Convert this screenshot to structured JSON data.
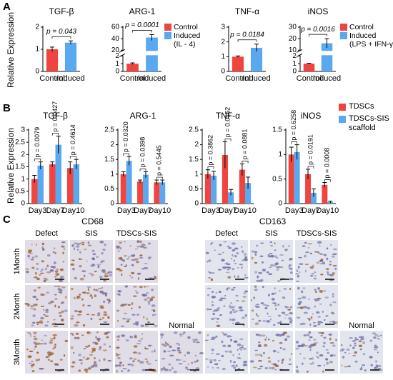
{
  "panel_a": {
    "label": "A",
    "ylabel": "Relative Expression"
  },
  "panel_b": {
    "label": "B",
    "ylabel": "Relative Expression"
  },
  "chart_data": [
    {
      "type": "bar",
      "title": "TGF-β",
      "categories": [
        "Control",
        "Induced"
      ],
      "values": [
        1.0,
        1.3
      ],
      "errors": [
        0.1,
        0.08
      ],
      "colors": [
        "#f0443f",
        "#5aa9f0"
      ],
      "ylim": [
        0,
        2
      ],
      "yticks": [
        0,
        1,
        2
      ],
      "pvalue": "p = 0.043"
    },
    {
      "type": "bar",
      "title": "ARG-1",
      "categories": [
        "Control",
        "Induced"
      ],
      "values": [
        1.0,
        42
      ],
      "errors": [
        0.1,
        5
      ],
      "colors": [
        "#f0443f",
        "#5aa9f0"
      ],
      "ylim": [
        0,
        60
      ],
      "yticks": [
        0,
        1,
        2,
        20,
        40,
        60
      ],
      "ybreak": [
        2,
        20
      ],
      "pvalue": "p = 0.0001",
      "legend": [
        "Control",
        "Induced",
        "(IL - 4)"
      ]
    },
    {
      "type": "bar",
      "title": "TNF-α",
      "categories": [
        "Control",
        "Induced"
      ],
      "values": [
        1.0,
        1.6
      ],
      "errors": [
        0.05,
        0.25
      ],
      "colors": [
        "#f0443f",
        "#5aa9f0"
      ],
      "ylim": [
        0,
        3
      ],
      "yticks": [
        0,
        1,
        2,
        3
      ],
      "pvalue": "p = 0.0184"
    },
    {
      "type": "bar",
      "title": "iNOS",
      "categories": [
        "Control",
        "Induced"
      ],
      "values": [
        1.0,
        16
      ],
      "errors": [
        0.05,
        4
      ],
      "colors": [
        "#f0443f",
        "#5aa9f0"
      ],
      "ylim": [
        0,
        30
      ],
      "yticks": [
        0,
        1,
        2,
        10,
        20,
        30
      ],
      "ybreak": [
        2,
        10
      ],
      "pvalue": "p = 0.0016",
      "legend": [
        "Control",
        "Induced",
        "(LPS + IFN-γ)"
      ]
    },
    {
      "type": "bar",
      "title": "TGF-β",
      "categories": [
        "Day3",
        "Day7",
        "Day10"
      ],
      "ylim": [
        0,
        3
      ],
      "yticks": [
        0,
        0.5,
        1,
        1.5,
        2,
        2.5,
        3
      ],
      "series": [
        {
          "color": "#f0443f",
          "values": [
            1.0,
            1.6,
            1.45
          ],
          "errors": [
            0.15,
            0.1,
            0.25
          ]
        },
        {
          "color": "#5aa9f0",
          "values": [
            1.55,
            2.4,
            1.6
          ],
          "errors": [
            0.15,
            0.35,
            0.2
          ]
        }
      ],
      "pvalues": [
        "p = 0.0079",
        "p = 0.0427",
        "p = 0.4614"
      ]
    },
    {
      "type": "bar",
      "title": "ARG-1",
      "categories": [
        "Day3",
        "Day7",
        "Day10"
      ],
      "ylim": [
        0,
        2.5
      ],
      "yticks": [
        0,
        0.5,
        1,
        1.5,
        2,
        2.5
      ],
      "series": [
        {
          "color": "#f0443f",
          "values": [
            1.0,
            0.75,
            0.72
          ],
          "errors": [
            0.08,
            0.05,
            0.08
          ]
        },
        {
          "color": "#5aa9f0",
          "values": [
            1.45,
            0.98,
            0.72
          ],
          "errors": [
            0.15,
            0.1,
            0.08
          ]
        }
      ],
      "pvalues": [
        "p = 0.0320",
        "p = 0.0398",
        "p = 0.5445"
      ]
    },
    {
      "type": "bar",
      "title": "TNF-α",
      "categories": [
        "Day3",
        "Day7",
        "Day10"
      ],
      "ylim": [
        0,
        2.5
      ],
      "yticks": [
        0,
        0.5,
        1,
        1.5,
        2,
        2.5
      ],
      "series": [
        {
          "color": "#f0443f",
          "values": [
            1.0,
            1.65,
            1.15
          ],
          "errors": [
            0.15,
            0.45,
            0.2
          ]
        },
        {
          "color": "#5aa9f0",
          "values": [
            0.95,
            0.38,
            0.7
          ],
          "errors": [
            0.15,
            0.1,
            0.2
          ]
        }
      ],
      "pvalues": [
        "p = 0.3862",
        "p = 0.0152",
        "p = 0.0881"
      ]
    },
    {
      "type": "bar",
      "title": "iNOS",
      "categories": [
        "Day3",
        "Day7",
        "Day10"
      ],
      "ylim": [
        0,
        1.5
      ],
      "yticks": [
        0,
        0.5,
        1,
        1.5
      ],
      "series": [
        {
          "name": "TDSCs",
          "color": "#f0443f",
          "values": [
            1.0,
            0.6,
            0.38
          ],
          "errors": [
            0.15,
            0.1,
            0.05
          ]
        },
        {
          "name": "TDSCs-SIS scaffold",
          "color": "#5aa9f0",
          "values": [
            1.05,
            0.22,
            0.03
          ],
          "errors": [
            0.15,
            0.08,
            0.02
          ]
        }
      ],
      "pvalues": [
        "p = 0.6258",
        "p = 0.0191",
        "p = 0.0008"
      ]
    }
  ],
  "panel_c": {
    "label": "C",
    "rows": [
      "1Month",
      "2Month",
      "3Month"
    ],
    "groups": [
      {
        "title": "CD68",
        "columns": [
          "Defect",
          "SIS",
          "TDSCs-SIS"
        ],
        "extra": "Normal"
      },
      {
        "title": "CD163",
        "columns": [
          "Defect",
          "SIS",
          "TDSCs-SIS"
        ],
        "extra": "Normal"
      }
    ]
  }
}
